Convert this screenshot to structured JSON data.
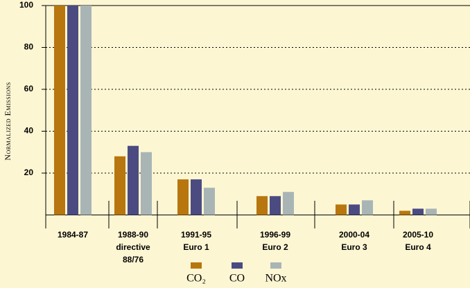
{
  "chart_data": {
    "type": "bar",
    "ylabel": "Normalized Emissions",
    "categories": [
      [
        "1984-87"
      ],
      [
        "1988-90",
        "directive",
        "88/76"
      ],
      [
        "1991-95",
        "Euro 1"
      ],
      [
        "1996-99",
        "Euro 2"
      ],
      [
        "2000-04",
        "Euro 3"
      ],
      [
        "2005-10",
        "Euro 4"
      ]
    ],
    "series": [
      {
        "name": "CO₂",
        "color": "#b8760f",
        "values": [
          100,
          28,
          17,
          9,
          5,
          2
        ]
      },
      {
        "name": "CO",
        "color": "#4b4b82",
        "values": [
          100,
          33,
          17,
          9,
          5,
          3
        ]
      },
      {
        "name": "NOx",
        "color": "#a9b5b5",
        "values": [
          100,
          30,
          13,
          11,
          7,
          3
        ]
      }
    ],
    "ylim": [
      0,
      100
    ],
    "yticks": [
      20,
      40,
      60,
      80,
      100
    ],
    "grid": true,
    "legend": "bottom"
  }
}
